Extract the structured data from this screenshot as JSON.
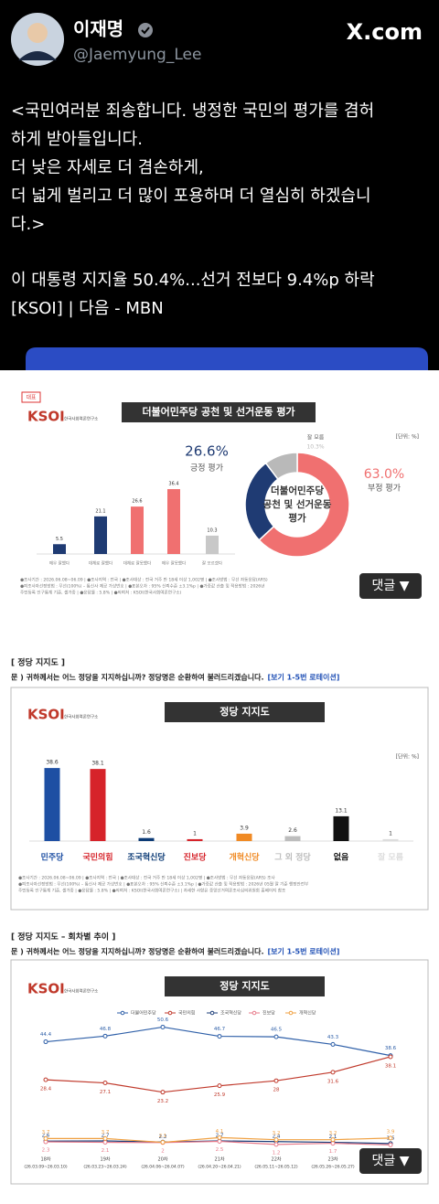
{
  "post": {
    "name": "이재명",
    "handle": "@Jaemyung_Lee",
    "site": "X.com",
    "lines": [
      "<국민여러분 죄송합니다. 냉정한 국민의 평가를 겸허",
      "하게 받아들입니다.",
      "더 낮은 자세로 더 겸손하게,",
      "더 넓게 벌리고 더 많이 포용하며 더 열심히 하겠습니",
      "다.>",
      "이 대통령 지지율 50.4%...선거 전보다 9.4%p 하락",
      "[KSOI] | 다음 - MBN"
    ]
  },
  "ui": {
    "comment_button": "댓글 ▼"
  },
  "chart_data": [
    {
      "type": "bar",
      "tag": "대표",
      "logo": "KSOI",
      "logo_sub": "한국사회여론연구소",
      "title": "더불어민주당 공천 및 선거운동 평가",
      "unit": "[단위: %]",
      "categories": [
        "매우 잘했다",
        "대체로 잘했다",
        "대체로 잘못했다",
        "매우 잘못했다",
        "잘 모르겠다"
      ],
      "values": [
        5.5,
        21.1,
        26.6,
        36.4,
        10.3
      ],
      "colors": [
        "#1f3b73",
        "#1f3b73",
        "#f07070",
        "#f07070",
        "#c8c8c8"
      ],
      "notes": [
        "●조사기간 : 2026.06.08~06.09 | ●조사지역 : 전국 | ●조사대상 : 전국 거주 만 18세 이상 1,002명 | ●조사방법 : 무선 자동응답(ARS)",
        "●피조사자선정방법 : 무선(100%) – 통신사 제공 가상번호 | ●표본오차 : 95% 신뢰수준 ±3.1%p | ●가중값 산출 및 적용방법 : 2026년",
        "주민등록 인구통계 기준, 셀가중 | ●응답률 : 5.8% | ●의뢰처 : KSOI(한국사회여론연구소)"
      ]
    },
    {
      "type": "pie",
      "center_label": [
        "더불어민주당",
        "공천 및 선거운동",
        "평가"
      ],
      "categories": [
        "부정 평가",
        "긍정 평가",
        "잘 모름"
      ],
      "values": [
        63.0,
        26.6,
        10.3
      ],
      "value_labels": [
        "63.0%",
        "26.6%",
        "10.3%"
      ],
      "colors": [
        "#f07070",
        "#1f3b73",
        "#b9b9b9"
      ]
    },
    {
      "type": "bar",
      "heading": "[ 정당 지지도 ]",
      "question": "문 )   귀하께서는 어느 정당을 지지하십니까? 정당명은 순환하여 불러드리겠습니다.",
      "rotation": "[보기 1-5번 로테이션]",
      "logo": "KSOI",
      "logo_sub": "한국사회여론연구소",
      "title": "정당 지지도",
      "unit": "[단위: %]",
      "categories": [
        "민주당",
        "국민의힘",
        "조국혁신당",
        "진보당",
        "개혁신당",
        "그 외 정당",
        "없음",
        "잘 모름"
      ],
      "values": [
        38.6,
        38.1,
        1.6,
        1.0,
        3.9,
        2.6,
        13.1,
        1.0
      ],
      "colors": [
        "#1e4fa3",
        "#d6232a",
        "#0b3a75",
        "#d6232a",
        "#f08a24",
        "#bdbdbd",
        "#111111",
        "#dddddd"
      ],
      "notes": [
        "●조사기간 : 2026.06.08~06.09 | ●조사지역 : 전국 | ●조사대상 : 전국 거주 만 18세 이상 1,002명 | ●조사방법 : 무선 자동응답(ARS) 조사",
        "●피조사자선정방법 : 무선(100%) – 통신사 제공 가상번호 | ●표본오차 : 95% 신뢰수준 ±3.1%p | ●가중값 산출 및 적용방법 : 2026년 05월 말 기준 행정안전부",
        "주민등록 인구통계 기준, 셀가중 | ●응답률 : 5.8% | ●의뢰처 : KSOI(한국사회여론연구소) | 자세한 사항은 중앙선거여론조사심의위원회 홈페이지 참조"
      ]
    },
    {
      "type": "line",
      "heading": "[ 정당 지지도 – 회차별 추이 ]",
      "question": "문 )   귀하께서는 어느 정당을 지지하십니까? 정당명은 순환하여 불러드리겠습니다.",
      "rotation": "[보기 1-5번 로테이션]",
      "logo": "KSOI",
      "logo_sub": "한국사회여론연구소",
      "title": "정당 지지도",
      "categories": [
        "18차",
        "19차",
        "20차",
        "21차",
        "22차",
        "23차",
        null
      ],
      "periods": [
        "(26.03.09~26.03.10)",
        "(26.03.23~26.03.24)",
        "(26.04.06~26.04.07)",
        "(26.04.20~26.04.21)",
        "(26.05.11~26.05.12)",
        "(26.05.26~26.05.27)",
        null
      ],
      "series": [
        {
          "name": "더불어민주당",
          "color": "#2e5fa8",
          "values": [
            44.4,
            46.8,
            50.6,
            46.7,
            46.5,
            43.3,
            38.6
          ]
        },
        {
          "name": "국민의힘",
          "color": "#c0392b",
          "values": [
            28.4,
            27.1,
            23.2,
            25.9,
            28.0,
            31.6,
            38.1
          ]
        },
        {
          "name": "조국혁신당",
          "color": "#1d3f7a",
          "values": [
            2.6,
            2.7,
            2.2,
            2.7,
            2.4,
            2.1,
            1.6
          ]
        },
        {
          "name": "진보당",
          "color": "#e77b8b",
          "values": [
            2.3,
            2.1,
            2.0,
            2.5,
            1.2,
            1.7,
            1.0
          ]
        },
        {
          "name": "개혁신당",
          "color": "#f0a040",
          "values": [
            3.7,
            3.7,
            2.1,
            4.1,
            3.2,
            3.2,
            3.9
          ]
        }
      ]
    }
  ]
}
